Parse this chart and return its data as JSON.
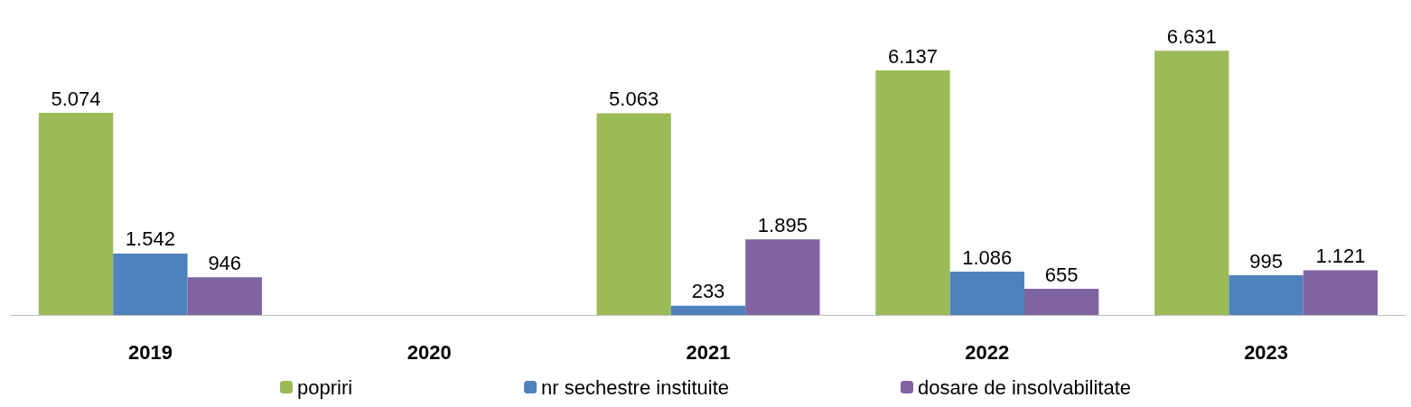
{
  "chart_data": {
    "type": "bar",
    "categories": [
      "2019",
      "2020",
      "2021",
      "2022",
      "2023"
    ],
    "series": [
      {
        "name": "popriri",
        "color": "#9bbb59",
        "values": [
          5074,
          null,
          5063,
          6137,
          6631
        ],
        "value_labels": [
          "5.074",
          null,
          "5.063",
          "6.137",
          "6.631"
        ]
      },
      {
        "name": "nr sechestre instituite",
        "color": "#4f81bd",
        "values": [
          1542,
          null,
          233,
          1086,
          995
        ],
        "value_labels": [
          "1.542",
          null,
          "233",
          "1.086",
          "995"
        ]
      },
      {
        "name": "dosare de insolvabilitate",
        "color": "#8064a2",
        "values": [
          946,
          null,
          1895,
          655,
          1121
        ],
        "value_labels": [
          "946",
          null,
          "1.895",
          "655",
          "1.121"
        ]
      }
    ],
    "legend": "bottom",
    "grid": false
  }
}
